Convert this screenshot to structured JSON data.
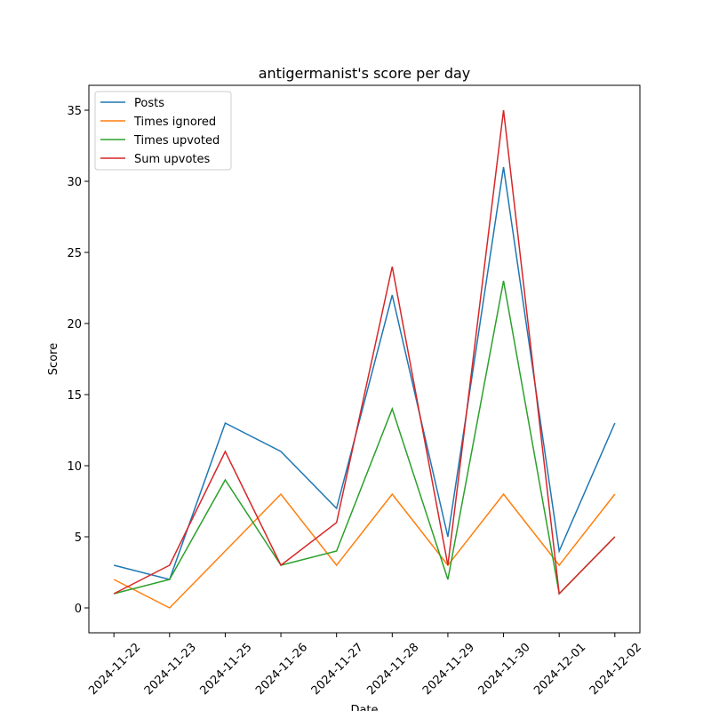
{
  "chart_data": {
    "type": "line",
    "title": "antigermanist's score per day",
    "xlabel": "Date",
    "ylabel": "Score",
    "categories": [
      "2024-11-22",
      "2024-11-23",
      "2024-11-25",
      "2024-11-26",
      "2024-11-27",
      "2024-11-28",
      "2024-11-29",
      "2024-11-30",
      "2024-12-01",
      "2024-12-02"
    ],
    "series": [
      {
        "name": "Posts",
        "color": "#1f77b4",
        "values": [
          3,
          2,
          13,
          11,
          7,
          22,
          5,
          31,
          4,
          13
        ]
      },
      {
        "name": "Times ignored",
        "color": "#ff7f0e",
        "values": [
          2,
          0,
          4,
          8,
          3,
          8,
          3,
          8,
          3,
          8
        ]
      },
      {
        "name": "Times upvoted",
        "color": "#2ca02c",
        "values": [
          1,
          2,
          9,
          3,
          4,
          14,
          2,
          23,
          1,
          5
        ]
      },
      {
        "name": "Sum upvotes",
        "color": "#d62728",
        "values": [
          1,
          3,
          11,
          3,
          6,
          24,
          3,
          35,
          1,
          5
        ]
      }
    ],
    "ylim": [
      -1.75,
      36.75
    ],
    "yticks": [
      0,
      5,
      10,
      15,
      20,
      25,
      30,
      35
    ],
    "grid": false,
    "legend": "upper left"
  }
}
